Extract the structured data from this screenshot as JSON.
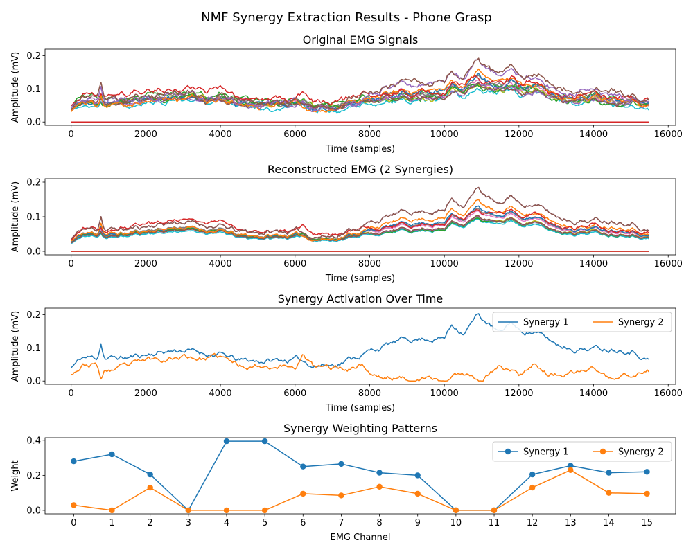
{
  "figure": {
    "title": "NMF Synergy Extraction Results - Phone Grasp"
  },
  "colors": {
    "tab10": [
      "#1f77b4",
      "#ff7f0e",
      "#2ca02c",
      "#d62728",
      "#9467bd",
      "#8c564b",
      "#e377c2",
      "#7f7f7f",
      "#bcbd22",
      "#17becf"
    ]
  },
  "chart_data": [
    {
      "id": "original",
      "type": "line",
      "title": "Original EMG Signals",
      "xlabel": "Time (samples)",
      "ylabel": "Amplitude (mV)",
      "xlim": [
        -700,
        16200
      ],
      "ylim": [
        -0.01,
        0.22
      ],
      "xticks": [
        0,
        2000,
        4000,
        6000,
        8000,
        10000,
        12000,
        14000,
        16000
      ],
      "yticks": [
        0.0,
        0.1,
        0.2
      ],
      "ytick_labels": [
        "0.0",
        "0.1",
        "0.2"
      ],
      "n_samples": 15500,
      "note_channels": "16 channels; channels 10 and 11 are flat at 0",
      "series_scales": [
        0.28,
        0.32,
        0.21,
        0.0,
        0.4,
        0.4,
        0.25,
        0.27,
        0.22,
        0.2,
        0.0,
        0.0,
        0.21,
        0.26,
        0.22,
        0.22
      ],
      "series_offsets": [
        0.02,
        0.01,
        0.045,
        0.06,
        0.0,
        0.01,
        0.02,
        0.015,
        0.02,
        0.015,
        0.0,
        0.0,
        0.02,
        0.025,
        0.02,
        0.02
      ]
    },
    {
      "id": "reconstructed",
      "type": "line",
      "title": "Reconstructed EMG (2 Synergies)",
      "xlabel": "Time (samples)",
      "ylabel": "Amplitude (mV)",
      "xlim": [
        -700,
        16200
      ],
      "ylim": [
        -0.01,
        0.21
      ],
      "xticks": [
        0,
        2000,
        4000,
        6000,
        8000,
        10000,
        12000,
        14000,
        16000
      ],
      "yticks": [
        0.0,
        0.1,
        0.2
      ],
      "ytick_labels": [
        "0.0",
        "0.1",
        "0.2"
      ],
      "n_samples": 15500
    },
    {
      "id": "activation",
      "type": "line",
      "title": "Synergy Activation Over Time",
      "xlabel": "Time (samples)",
      "ylabel": "Amplitude (mV)",
      "xlim": [
        -700,
        16200
      ],
      "ylim": [
        -0.01,
        0.22
      ],
      "xticks": [
        0,
        2000,
        4000,
        6000,
        8000,
        10000,
        12000,
        14000,
        16000
      ],
      "yticks": [
        0.0,
        0.1,
        0.2
      ],
      "ytick_labels": [
        "0.0",
        "0.1",
        "0.2"
      ],
      "legend": "top-right",
      "n_samples": 15500,
      "series": [
        {
          "name": "Synergy 1",
          "color": "#1f77b4",
          "anchors_x": [
            0,
            300,
            700,
            800,
            900,
            1500,
            2000,
            2500,
            3000,
            3500,
            4000,
            4500,
            5000,
            6000,
            6500,
            7000,
            7500,
            8000,
            8500,
            9000,
            9500,
            10000,
            10200,
            10500,
            10900,
            11200,
            11500,
            11800,
            12000,
            12400,
            13000,
            13500,
            14000,
            14500,
            15000,
            15500
          ],
          "anchors_y": [
            0.04,
            0.07,
            0.07,
            0.115,
            0.07,
            0.07,
            0.08,
            0.09,
            0.095,
            0.085,
            0.08,
            0.06,
            0.06,
            0.065,
            0.05,
            0.05,
            0.07,
            0.09,
            0.11,
            0.125,
            0.13,
            0.13,
            0.17,
            0.15,
            0.2,
            0.17,
            0.14,
            0.18,
            0.15,
            0.15,
            0.11,
            0.1,
            0.1,
            0.1,
            0.1,
            0.065
          ]
        },
        {
          "name": "Synergy 2",
          "color": "#ff7f0e",
          "anchors_x": [
            0,
            300,
            700,
            800,
            900,
            1500,
            2000,
            2500,
            3000,
            3500,
            4000,
            4500,
            5000,
            6000,
            6200,
            6500,
            7000,
            7500,
            7800,
            8000,
            8300,
            8600,
            9000,
            9500,
            10000,
            10500,
            11000,
            11500,
            12000,
            12400,
            12800,
            13500,
            14000,
            14500,
            15000,
            15500
          ],
          "anchors_y": [
            0.025,
            0.05,
            0.05,
            0.0,
            0.03,
            0.04,
            0.06,
            0.07,
            0.075,
            0.07,
            0.07,
            0.045,
            0.05,
            0.045,
            0.08,
            0.04,
            0.04,
            0.04,
            0.055,
            0.025,
            0.01,
            0.01,
            0.005,
            0.005,
            0.0,
            0.025,
            0.01,
            0.05,
            0.02,
            0.06,
            0.02,
            0.02,
            0.04,
            0.0,
            0.02,
            0.03
          ]
        }
      ]
    },
    {
      "id": "weights",
      "type": "line",
      "title": "Synergy Weighting Patterns",
      "xlabel": "EMG Channel",
      "ylabel": "Weight",
      "xlim": [
        -0.75,
        15.75
      ],
      "ylim": [
        -0.02,
        0.415
      ],
      "xticks": [
        0,
        1,
        2,
        3,
        4,
        5,
        6,
        7,
        8,
        9,
        10,
        11,
        12,
        13,
        14,
        15
      ],
      "yticks": [
        0.0,
        0.2,
        0.4
      ],
      "ytick_labels": [
        "0.0",
        "0.2",
        "0.4"
      ],
      "legend": "top-right",
      "series": [
        {
          "name": "Synergy 1",
          "color": "#1f77b4",
          "x": [
            0,
            1,
            2,
            3,
            4,
            5,
            6,
            7,
            8,
            9,
            10,
            11,
            12,
            13,
            14,
            15
          ],
          "values": [
            0.28,
            0.32,
            0.205,
            0.0,
            0.395,
            0.395,
            0.25,
            0.265,
            0.215,
            0.2,
            0.0,
            0.0,
            0.205,
            0.255,
            0.215,
            0.22
          ]
        },
        {
          "name": "Synergy 2",
          "color": "#ff7f0e",
          "x": [
            0,
            1,
            2,
            3,
            4,
            5,
            6,
            7,
            8,
            9,
            10,
            11,
            12,
            13,
            14,
            15
          ],
          "values": [
            0.03,
            0.0,
            0.13,
            0.0,
            0.0,
            0.0,
            0.095,
            0.085,
            0.135,
            0.095,
            0.0,
            0.0,
            0.13,
            0.23,
            0.1,
            0.095
          ]
        }
      ]
    }
  ]
}
